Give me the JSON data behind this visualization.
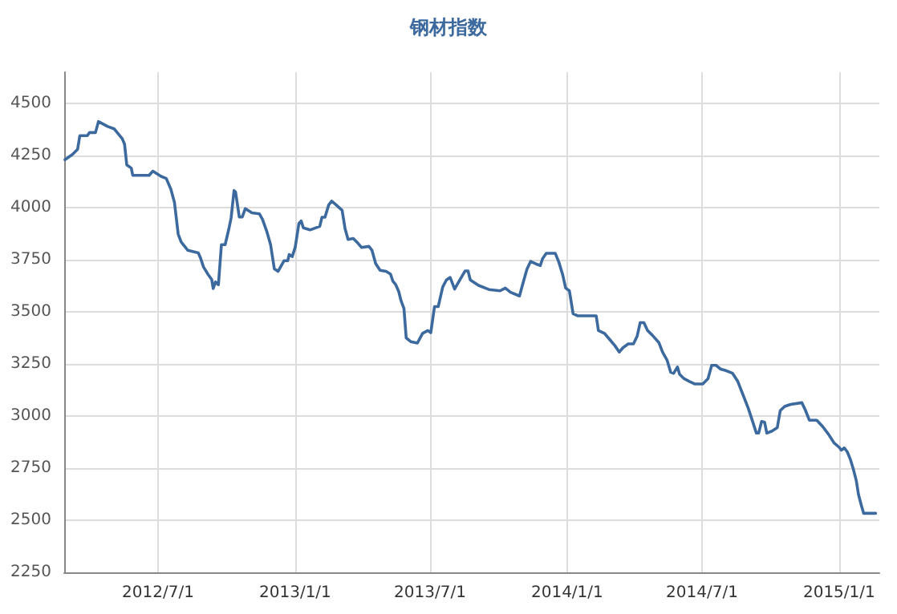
{
  "chart_data": {
    "type": "line",
    "title": "钢材指数",
    "color": "#3d6a9e",
    "marker": "none",
    "line_style": "solid",
    "grid": true,
    "xlim": [
      "2012-02-26",
      "2015-02-24"
    ],
    "xticks": [
      {
        "value": "2012-07-01",
        "label": "2012/7/1"
      },
      {
        "value": "2013-01-01",
        "label": "2013/1/1"
      },
      {
        "value": "2013-07-01",
        "label": "2013/7/1"
      },
      {
        "value": "2014-01-01",
        "label": "2014/1/1"
      },
      {
        "value": "2014-07-01",
        "label": "2014/7/1"
      },
      {
        "value": "2015-01-01",
        "label": "2015/1/1"
      }
    ],
    "ylim": [
      2250,
      4650
    ],
    "yticks": [
      2250,
      2500,
      2750,
      3000,
      3250,
      3500,
      3750,
      4000,
      4250,
      4500
    ],
    "x": [
      "2012-02-27",
      "2012-03-08",
      "2012-03-15",
      "2012-03-18",
      "2012-03-28",
      "2012-03-31",
      "2012-04-08",
      "2012-04-12",
      "2012-04-24",
      "2012-05-03",
      "2012-05-14",
      "2012-05-17",
      "2012-05-20",
      "2012-05-26",
      "2012-05-28",
      "2012-06-19",
      "2012-06-24",
      "2012-07-05",
      "2012-07-12",
      "2012-07-18",
      "2012-07-23",
      "2012-07-28",
      "2012-08-01",
      "2012-08-10",
      "2012-08-24",
      "2012-08-27",
      "2012-08-31",
      "2012-09-06",
      "2012-09-11",
      "2012-09-13",
      "2012-09-16",
      "2012-09-20",
      "2012-09-24",
      "2012-09-29",
      "2012-10-04",
      "2012-10-07",
      "2012-10-11",
      "2012-10-13",
      "2012-10-18",
      "2012-10-22",
      "2012-10-26",
      "2012-11-04",
      "2012-11-14",
      "2012-11-18",
      "2012-11-24",
      "2012-11-29",
      "2012-12-04",
      "2012-12-09",
      "2012-12-17",
      "2012-12-22",
      "2012-12-24",
      "2012-12-28",
      "2013-01-01",
      "2013-01-06",
      "2013-01-09",
      "2013-01-12",
      "2013-01-21",
      "2013-02-03",
      "2013-02-06",
      "2013-02-10",
      "2013-02-15",
      "2013-02-19",
      "2013-02-25",
      "2013-03-05",
      "2013-03-09",
      "2013-03-13",
      "2013-03-20",
      "2013-03-25",
      "2013-03-31",
      "2013-04-10",
      "2013-04-14",
      "2013-04-19",
      "2013-04-25",
      "2013-05-03",
      "2013-05-09",
      "2013-05-12",
      "2013-05-16",
      "2013-05-20",
      "2013-05-23",
      "2013-05-27",
      "2013-05-30",
      "2013-06-05",
      "2013-06-14",
      "2013-06-21",
      "2013-06-28",
      "2013-07-02",
      "2013-07-07",
      "2013-07-12",
      "2013-07-18",
      "2013-07-23",
      "2013-07-28",
      "2013-08-03",
      "2013-08-10",
      "2013-08-17",
      "2013-08-21",
      "2013-08-24",
      "2013-09-04",
      "2013-09-18",
      "2013-10-03",
      "2013-10-10",
      "2013-10-17",
      "2013-10-29",
      "2013-11-03",
      "2013-11-08",
      "2013-11-13",
      "2013-11-20",
      "2013-11-26",
      "2013-11-29",
      "2013-12-04",
      "2013-12-16",
      "2013-12-21",
      "2013-12-26",
      "2013-12-30",
      "2014-01-04",
      "2014-01-09",
      "2014-01-15",
      "2014-02-09",
      "2014-02-12",
      "2014-02-20",
      "2014-03-06",
      "2014-03-12",
      "2014-03-17",
      "2014-03-24",
      "2014-03-31",
      "2014-04-05",
      "2014-04-09",
      "2014-04-14",
      "2014-04-19",
      "2014-04-25",
      "2014-05-04",
      "2014-05-09",
      "2014-05-15",
      "2014-05-20",
      "2014-05-24",
      "2014-05-29",
      "2014-06-01",
      "2014-06-07",
      "2014-06-14",
      "2014-06-21",
      "2014-07-02",
      "2014-07-09",
      "2014-07-14",
      "2014-07-20",
      "2014-07-26",
      "2014-08-02",
      "2014-08-11",
      "2014-08-18",
      "2014-08-25",
      "2014-09-01",
      "2014-09-08",
      "2014-09-12",
      "2014-09-15",
      "2014-09-19",
      "2014-09-23",
      "2014-09-26",
      "2014-10-03",
      "2014-10-10",
      "2014-10-14",
      "2014-10-20",
      "2014-10-28",
      "2014-11-12",
      "2014-11-17",
      "2014-11-22",
      "2014-12-02",
      "2014-12-10",
      "2014-12-18",
      "2014-12-25",
      "2015-01-01",
      "2015-01-04",
      "2015-01-08",
      "2015-01-12",
      "2015-01-16",
      "2015-01-20",
      "2015-01-24",
      "2015-01-27",
      "2015-01-31",
      "2015-02-03",
      "2015-02-19"
    ],
    "values": [
      4230,
      4255,
      4280,
      4345,
      4345,
      4360,
      4360,
      4413,
      4390,
      4378,
      4330,
      4305,
      4205,
      4190,
      4155,
      4155,
      4175,
      4150,
      4140,
      4090,
      4025,
      3873,
      3835,
      3795,
      3783,
      3758,
      3715,
      3680,
      3655,
      3612,
      3643,
      3630,
      3822,
      3822,
      3898,
      3950,
      4082,
      4075,
      3955,
      3955,
      3995,
      3975,
      3970,
      3945,
      3885,
      3822,
      3707,
      3694,
      3745,
      3745,
      3775,
      3765,
      3809,
      3924,
      3936,
      3903,
      3893,
      3910,
      3954,
      3954,
      4013,
      4031,
      4013,
      3987,
      3898,
      3847,
      3852,
      3834,
      3809,
      3814,
      3796,
      3732,
      3699,
      3694,
      3681,
      3648,
      3630,
      3597,
      3554,
      3516,
      3375,
      3357,
      3350,
      3397,
      3410,
      3400,
      3525,
      3525,
      3619,
      3653,
      3665,
      3609,
      3653,
      3696,
      3696,
      3653,
      3627,
      3607,
      3601,
      3614,
      3594,
      3576,
      3640,
      3704,
      3742,
      3730,
      3722,
      3755,
      3781,
      3781,
      3737,
      3678,
      3614,
      3601,
      3491,
      3481,
      3481,
      3410,
      3397,
      3338,
      3307,
      3328,
      3346,
      3346,
      3384,
      3448,
      3448,
      3410,
      3389,
      3353,
      3307,
      3269,
      3210,
      3205,
      3235,
      3200,
      3179,
      3166,
      3154,
      3154,
      3179,
      3243,
      3243,
      3225,
      3218,
      3205,
      3166,
      3102,
      3038,
      2962,
      2918,
      2918,
      2974,
      2970,
      2918,
      2928,
      2944,
      3026,
      3046,
      3056,
      3064,
      3026,
      2980,
      2980,
      2949,
      2911,
      2872,
      2850,
      2836,
      2847,
      2828,
      2793,
      2746,
      2691,
      2623,
      2569,
      2533,
      2533
    ]
  }
}
